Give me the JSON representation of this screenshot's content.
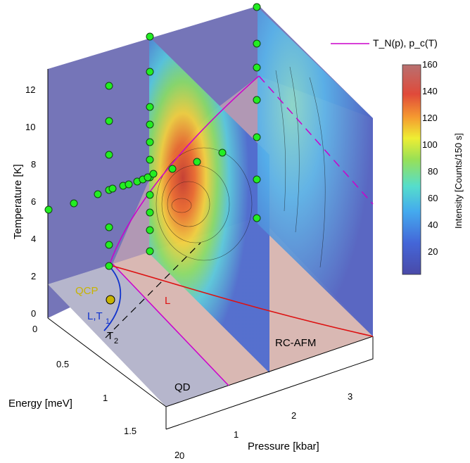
{
  "chart_data": {
    "type": "3d-phase-diagram",
    "axes": {
      "temperature": {
        "label": "Temperature [K]",
        "ticks": [
          "0",
          "2",
          "4",
          "6",
          "8",
          "10",
          "12"
        ],
        "range": [
          0,
          13
        ]
      },
      "energy": {
        "label": "Energy [meV]",
        "ticks": [
          "0",
          "0.5",
          "1",
          "1.5",
          "2"
        ],
        "range": [
          0,
          2
        ]
      },
      "pressure": {
        "label": "Pressure [kbar]",
        "ticks": [
          "0",
          "1",
          "2",
          "3"
        ],
        "range": [
          0,
          3.6
        ]
      }
    },
    "colorbar": {
      "label": "Intensity [Counts/150 s]",
      "ticks": [
        "20",
        "40",
        "60",
        "80",
        "100",
        "120",
        "140",
        "160"
      ],
      "range": [
        5,
        160
      ]
    },
    "legend": [
      {
        "label": "T_N(p), p_c(T)",
        "color": "#cc00cc"
      }
    ],
    "region_labels": {
      "qcp": "QCP",
      "l_t1": "L,T",
      "l_t1_sub": "1",
      "t2": "T",
      "t2_sub": "2",
      "l": "L",
      "qd": "QD",
      "rc_afm": "RC-AFM"
    },
    "marker_color": "#22ee22",
    "measurement_points": {
      "description_note": "",
      "temperature_scan_p0": [
        {
          "E": 0.0,
          "T": 2.2
        },
        {
          "E": 0.0,
          "T": 2.5
        },
        {
          "E": 0.0,
          "T": 3.5
        }
      ]
    },
    "energy_scan_p0_T2p5": [
      {
        "E": 0.0,
        "T": 6.1
      },
      {
        "E": 0.1,
        "T": 6.4
      },
      {
        "E": 0.2,
        "T": 6.7
      },
      {
        "E": 0.3,
        "T": 7.0
      },
      {
        "E": 0.4,
        "T": 7.2
      },
      {
        "E": 0.5,
        "T": 7.4
      },
      {
        "E": 0.6,
        "T": 7.6
      },
      {
        "E": 0.8,
        "T": 7.8
      },
      {
        "E": 1.0,
        "T": 8.0
      },
      {
        "E": 1.2,
        "T": 8.2
      },
      {
        "E": 1.4,
        "T": 8.5
      }
    ],
    "colors": {
      "phase_boundary": "#cc00cc",
      "L_line": "#dd1111",
      "LT1_line": "#1133cc",
      "qcp_marker": "#c8b400",
      "floor_qd": "#b6b6cc",
      "floor_afm": "#d9b8b3",
      "wall_blue": "#6e6eb4"
    }
  }
}
